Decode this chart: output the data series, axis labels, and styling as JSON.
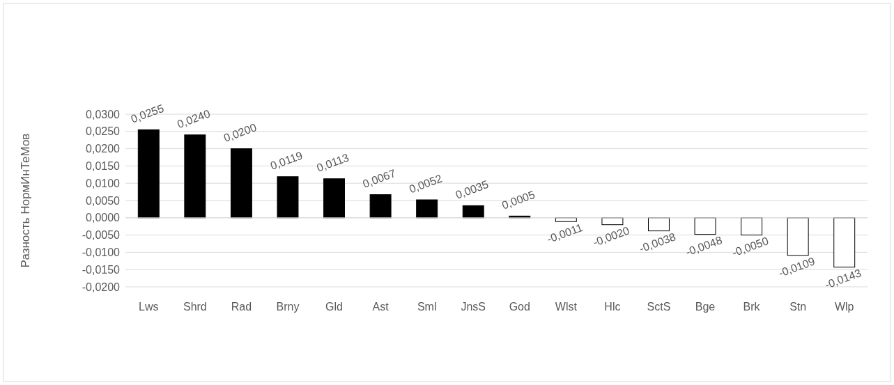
{
  "chart_data": {
    "type": "bar",
    "ylabel": "Разность НормИнТеМов",
    "categories": [
      "Lws",
      "Shrd",
      "Rad",
      "Brny",
      "Gld",
      "Ast",
      "Sml",
      "JnsS",
      "God",
      "Wlst",
      "Hlc",
      "SctS",
      "Bge",
      "Brk",
      "Stn",
      "Wlp"
    ],
    "values": [
      0.0255,
      0.024,
      0.02,
      0.0119,
      0.0113,
      0.0067,
      0.0052,
      0.0035,
      0.0005,
      -0.0011,
      -0.002,
      -0.0038,
      -0.0048,
      -0.005,
      -0.0109,
      -0.0143
    ],
    "colors": [
      "#000000",
      "#000000",
      "#000000",
      "#000000",
      "#000000",
      "#000000",
      "#000000",
      "#000000",
      "#000000",
      "#ffffff",
      "#ffffff",
      "#ffffff",
      "#ffffff",
      "#ffffff",
      "#ffffff",
      "#ffffff"
    ],
    "value_labels": [
      "0,0255",
      "0,0240",
      "0,0200",
      "0,0119",
      "0,0113",
      "0,0067",
      "0,0052",
      "0,0035",
      "0,0005",
      "-0,0011",
      "-0,0020",
      "-0,0038",
      "-0,0048",
      "-0,0050",
      "-0,0109",
      "-0,0143"
    ],
    "ylim": [
      -0.02,
      0.03
    ],
    "yticks": [
      {
        "value": -0.02,
        "label": "-0,0200"
      },
      {
        "value": -0.015,
        "label": "-0,0150"
      },
      {
        "value": -0.01,
        "label": "-0,0100"
      },
      {
        "value": -0.005,
        "label": "-0,0050"
      },
      {
        "value": 0,
        "label": "0,0000"
      },
      {
        "value": 0.005,
        "label": "0,0050"
      },
      {
        "value": 0.01,
        "label": "0,0100"
      },
      {
        "value": 0.015,
        "label": "0,0150"
      },
      {
        "value": 0.02,
        "label": "0,0200"
      },
      {
        "value": 0.025,
        "label": "0,0250"
      },
      {
        "value": 0.03,
        "label": "0,0300"
      }
    ],
    "grid": "y"
  }
}
